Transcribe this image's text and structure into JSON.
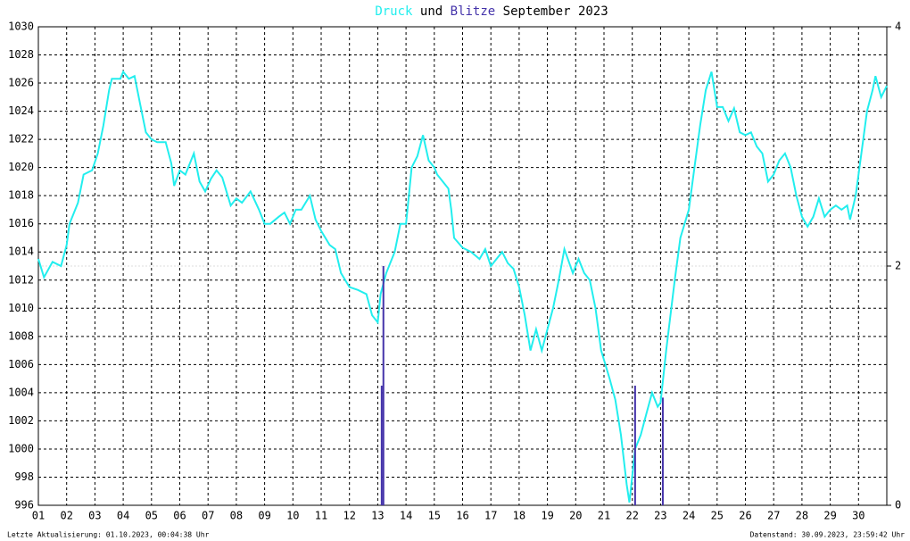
{
  "chart_data": {
    "type": "line",
    "title_connector": "und",
    "title_suffix": "September 2023",
    "footer_left": "Letzte Aktualisierung: 01.10.2023, 00:04:38 Uhr",
    "footer_right": "Datenstand: 30.09.2023, 23:59:42 Uhr",
    "xlim": [
      1,
      31
    ],
    "xticks": [
      {
        "value": 1,
        "label": "01"
      },
      {
        "value": 2,
        "label": "02"
      },
      {
        "value": 3,
        "label": "03"
      },
      {
        "value": 4,
        "label": "04"
      },
      {
        "value": 5,
        "label": "05"
      },
      {
        "value": 6,
        "label": "06"
      },
      {
        "value": 7,
        "label": "07"
      },
      {
        "value": 8,
        "label": "08"
      },
      {
        "value": 9,
        "label": "09"
      },
      10,
      11,
      12,
      13,
      14,
      15,
      16,
      17,
      18,
      19,
      20,
      21,
      22,
      23,
      24,
      25,
      26,
      27,
      28,
      29,
      30
    ],
    "ylim": [
      996,
      1030
    ],
    "yticks": [
      996,
      998,
      1000,
      1002,
      1004,
      1006,
      1008,
      1010,
      1012,
      1014,
      1016,
      1018,
      1020,
      1022,
      1024,
      1026,
      1028,
      1030
    ],
    "y2lim": [
      0,
      4
    ],
    "y2ticks": [
      0,
      2,
      4
    ],
    "grid": true,
    "series": [
      {
        "name": "Druck",
        "color": "#22eeee",
        "x": [
          1.0,
          1.2,
          1.5,
          1.8,
          2.0,
          2.1,
          2.4,
          2.6,
          2.9,
          3.1,
          3.3,
          3.5,
          3.6,
          3.9,
          4.0,
          4.2,
          4.4,
          4.6,
          4.8,
          5.0,
          5.2,
          5.5,
          5.7,
          5.8,
          6.0,
          6.2,
          6.5,
          6.7,
          6.9,
          7.1,
          7.3,
          7.5,
          7.8,
          8.0,
          8.2,
          8.5,
          8.8,
          9.0,
          9.2,
          9.5,
          9.7,
          9.9,
          10.1,
          10.3,
          10.6,
          10.8,
          11.0,
          11.3,
          11.5,
          11.7,
          12.0,
          12.3,
          12.6,
          12.8,
          13.0,
          13.1,
          13.3,
          13.6,
          13.8,
          14.0,
          14.1,
          14.2,
          14.4,
          14.6,
          14.8,
          15.0,
          15.1,
          15.3,
          15.5,
          15.6,
          15.7,
          16.0,
          16.3,
          16.6,
          16.8,
          17.0,
          17.2,
          17.4,
          17.6,
          17.8,
          18.0,
          18.2,
          18.4,
          18.6,
          18.8,
          19.0,
          19.2,
          19.4,
          19.6,
          19.9,
          20.1,
          20.3,
          20.5,
          20.7,
          20.9,
          21.2,
          21.4,
          21.6,
          21.8,
          21.9,
          22.1,
          22.3,
          22.5,
          22.7,
          22.9,
          23.0,
          23.2,
          23.5,
          23.7,
          24.0,
          24.2,
          24.4,
          24.6,
          24.8,
          25.0,
          25.2,
          25.4,
          25.6,
          25.8,
          26.0,
          26.2,
          26.4,
          26.6,
          26.8,
          27.0,
          27.2,
          27.4,
          27.6,
          27.8,
          28.0,
          28.2,
          28.4,
          28.6,
          28.8,
          29.0,
          29.2,
          29.4,
          29.6,
          29.7,
          29.9,
          30.1,
          30.3,
          30.5,
          30.6,
          30.8,
          31.0
        ],
        "values": [
          1013.5,
          1012.2,
          1013.3,
          1013,
          1014.5,
          1016,
          1017.5,
          1019.5,
          1019.8,
          1021,
          1023,
          1025.5,
          1026.3,
          1026.3,
          1026.8,
          1026.3,
          1026.5,
          1024.5,
          1022.5,
          1022,
          1021.8,
          1021.8,
          1020.3,
          1018.7,
          1019.8,
          1019.5,
          1021,
          1019,
          1018.3,
          1019.2,
          1019.8,
          1019.3,
          1017.3,
          1017.8,
          1017.5,
          1018.3,
          1017,
          1016,
          1016,
          1016.5,
          1016.8,
          1016,
          1017,
          1017,
          1018,
          1016.3,
          1015.5,
          1014.5,
          1014.2,
          1012.5,
          1011.5,
          1011.3,
          1011,
          1009.5,
          1009,
          1011,
          1012.5,
          1014,
          1016,
          1016,
          1018,
          1020,
          1020.8,
          1022.3,
          1020.5,
          1020,
          1019.5,
          1019,
          1018.5,
          1017,
          1015,
          1014.3,
          1014,
          1013.5,
          1014.2,
          1013,
          1013.5,
          1014,
          1013.2,
          1012.8,
          1011.5,
          1009.5,
          1007,
          1008.5,
          1007,
          1008.5,
          1010,
          1012,
          1014.2,
          1012.5,
          1013.5,
          1012.5,
          1012,
          1010,
          1007,
          1005,
          1003.5,
          1001,
          997.5,
          996.2,
          1000,
          1001,
          1002.5,
          1004,
          1003,
          1003.3,
          1007,
          1012,
          1015,
          1017,
          1020,
          1023,
          1025.5,
          1026.8,
          1024.3,
          1024.3,
          1023.3,
          1024.2,
          1022.5,
          1022.3,
          1022.5,
          1021.5,
          1021,
          1019,
          1019.5,
          1020.5,
          1021,
          1020,
          1018,
          1016.5,
          1015.8,
          1016.5,
          1017.8,
          1016.5,
          1017,
          1017.3,
          1017,
          1017.3,
          1016.3,
          1018,
          1021,
          1024,
          1025.5,
          1026.5,
          1025,
          1025.8
        ]
      },
      {
        "name": "Blitze",
        "color": "#4433aa",
        "axis": "y2",
        "type": "bar",
        "x": [
          13.14,
          13.2,
          22.1,
          23.08
        ],
        "values": [
          1,
          2,
          1,
          0.9
        ]
      }
    ]
  }
}
